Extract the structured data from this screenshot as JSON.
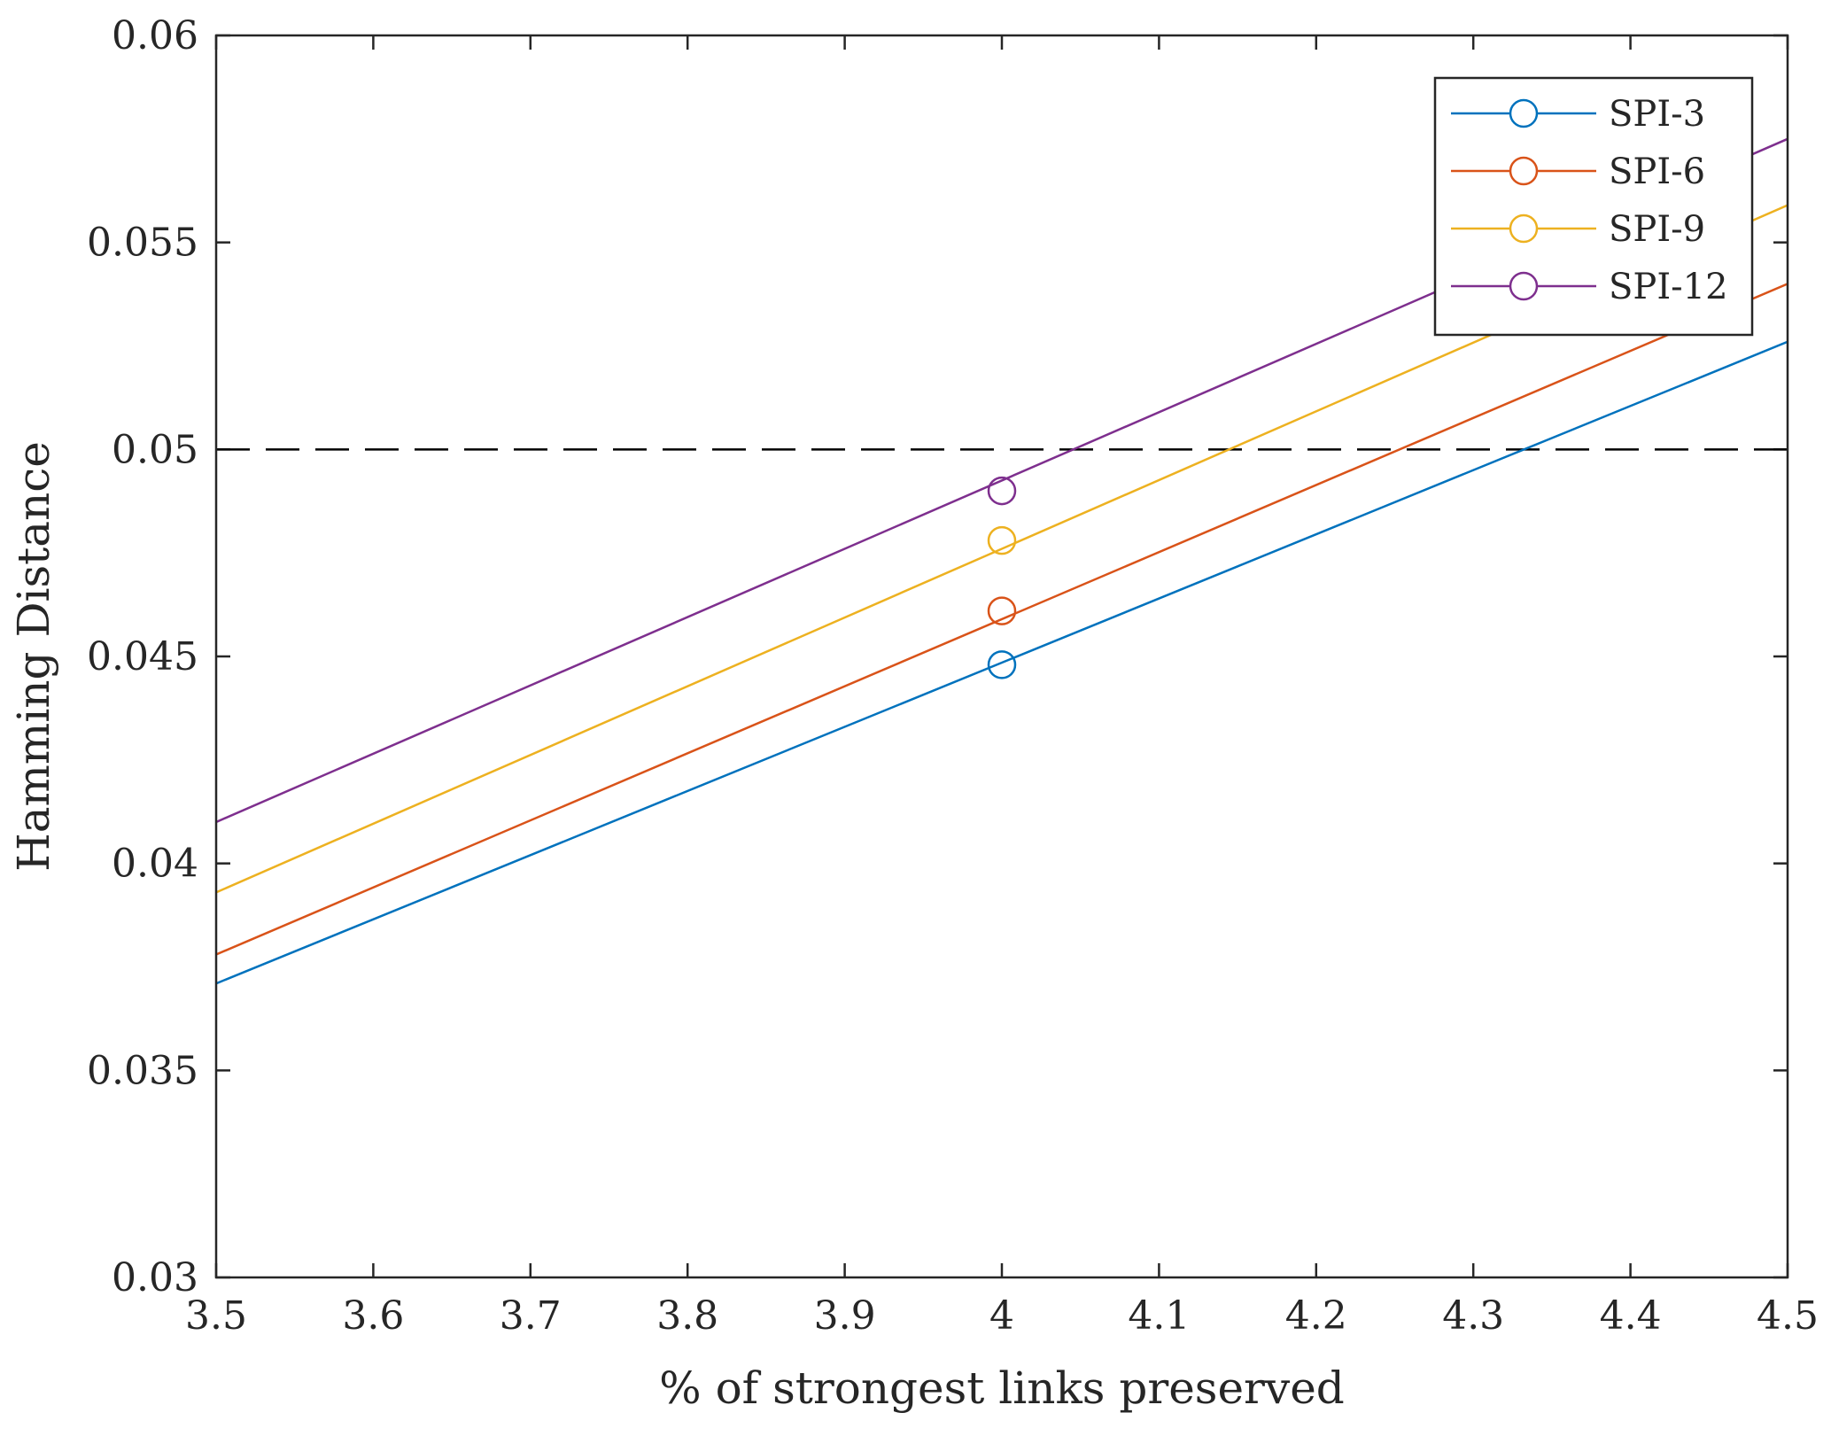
{
  "chart_data": {
    "type": "line",
    "xlabel": "% of strongest links preserved",
    "ylabel": "Hamming Distance",
    "xlim": [
      3.5,
      4.5
    ],
    "ylim": [
      0.03,
      0.06
    ],
    "xticks": [
      "3.5",
      "3.6",
      "3.7",
      "3.8",
      "3.9",
      "4",
      "4.1",
      "4.2",
      "4.3",
      "4.4",
      "4.5"
    ],
    "yticks": [
      "0.03",
      "0.035",
      "0.04",
      "0.045",
      "0.05",
      "0.055",
      "0.06"
    ],
    "grid": false,
    "legend_position": "top-right",
    "reference_line": {
      "y": 0.05,
      "style": "dashed",
      "color": "#000000"
    },
    "series": [
      {
        "name": "SPI-3",
        "color": "#0072BD",
        "x": [
          3.5,
          4.5
        ],
        "y": [
          0.0371,
          0.0526
        ],
        "marker": {
          "x": 4.0,
          "y": 0.0448
        }
      },
      {
        "name": "SPI-6",
        "color": "#D95319",
        "x": [
          3.5,
          4.5
        ],
        "y": [
          0.0378,
          0.054
        ],
        "marker": {
          "x": 4.0,
          "y": 0.0461
        }
      },
      {
        "name": "SPI-9",
        "color": "#EDB120",
        "x": [
          3.5,
          4.5
        ],
        "y": [
          0.0393,
          0.0559
        ],
        "marker": {
          "x": 4.0,
          "y": 0.0478
        }
      },
      {
        "name": "SPI-12",
        "color": "#7E2F8E",
        "x": [
          3.5,
          4.5
        ],
        "y": [
          0.041,
          0.0575
        ],
        "marker": {
          "x": 4.0,
          "y": 0.049
        }
      }
    ]
  }
}
